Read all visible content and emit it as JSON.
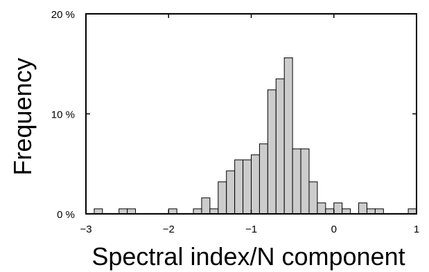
{
  "chart_data": {
    "type": "bar",
    "title": "",
    "xlabel": "Spectral index/N component",
    "ylabel": "Frequency",
    "xlim": [
      -3,
      1
    ],
    "ylim": [
      0,
      20
    ],
    "bin_width": 0.1,
    "x_ticks": [
      -3,
      -2,
      -1,
      0,
      1
    ],
    "x_tick_labels": [
      "−3",
      "−2",
      "−1",
      "0",
      "1"
    ],
    "y_ticks": [
      0,
      10,
      20
    ],
    "y_tick_labels": [
      "0 %",
      "10 %",
      "20 %"
    ],
    "grid": false,
    "legend": "none",
    "bar_color": "#cccccc",
    "bar_edge_color": "#000000",
    "bins": [
      {
        "x0": -2.9,
        "x1": -2.8,
        "value": 0.5
      },
      {
        "x0": -2.6,
        "x1": -2.5,
        "value": 0.5
      },
      {
        "x0": -2.5,
        "x1": -2.4,
        "value": 0.5
      },
      {
        "x0": -2.0,
        "x1": -1.9,
        "value": 0.5
      },
      {
        "x0": -1.7,
        "x1": -1.6,
        "value": 0.5
      },
      {
        "x0": -1.6,
        "x1": -1.5,
        "value": 1.6
      },
      {
        "x0": -1.5,
        "x1": -1.4,
        "value": 0.5
      },
      {
        "x0": -1.4,
        "x1": -1.3,
        "value": 3.2
      },
      {
        "x0": -1.3,
        "x1": -1.2,
        "value": 4.3
      },
      {
        "x0": -1.2,
        "x1": -1.1,
        "value": 5.4
      },
      {
        "x0": -1.1,
        "x1": -1.0,
        "value": 5.4
      },
      {
        "x0": -1.0,
        "x1": -0.9,
        "value": 5.9
      },
      {
        "x0": -0.9,
        "x1": -0.8,
        "value": 7.0
      },
      {
        "x0": -0.8,
        "x1": -0.7,
        "value": 12.4
      },
      {
        "x0": -0.7,
        "x1": -0.6,
        "value": 13.5
      },
      {
        "x0": -0.6,
        "x1": -0.5,
        "value": 15.6
      },
      {
        "x0": -0.5,
        "x1": -0.4,
        "value": 6.5
      },
      {
        "x0": -0.4,
        "x1": -0.3,
        "value": 6.5
      },
      {
        "x0": -0.3,
        "x1": -0.2,
        "value": 3.2
      },
      {
        "x0": -0.2,
        "x1": -0.1,
        "value": 1.1
      },
      {
        "x0": -0.1,
        "x1": 0.0,
        "value": 0.5
      },
      {
        "x0": 0.0,
        "x1": 0.1,
        "value": 1.1
      },
      {
        "x0": 0.1,
        "x1": 0.2,
        "value": 0.5
      },
      {
        "x0": 0.3,
        "x1": 0.4,
        "value": 1.1
      },
      {
        "x0": 0.4,
        "x1": 0.5,
        "value": 0.5
      },
      {
        "x0": 0.5,
        "x1": 0.6,
        "value": 0.5
      },
      {
        "x0": 0.9,
        "x1": 1.0,
        "value": 0.5
      }
    ]
  }
}
